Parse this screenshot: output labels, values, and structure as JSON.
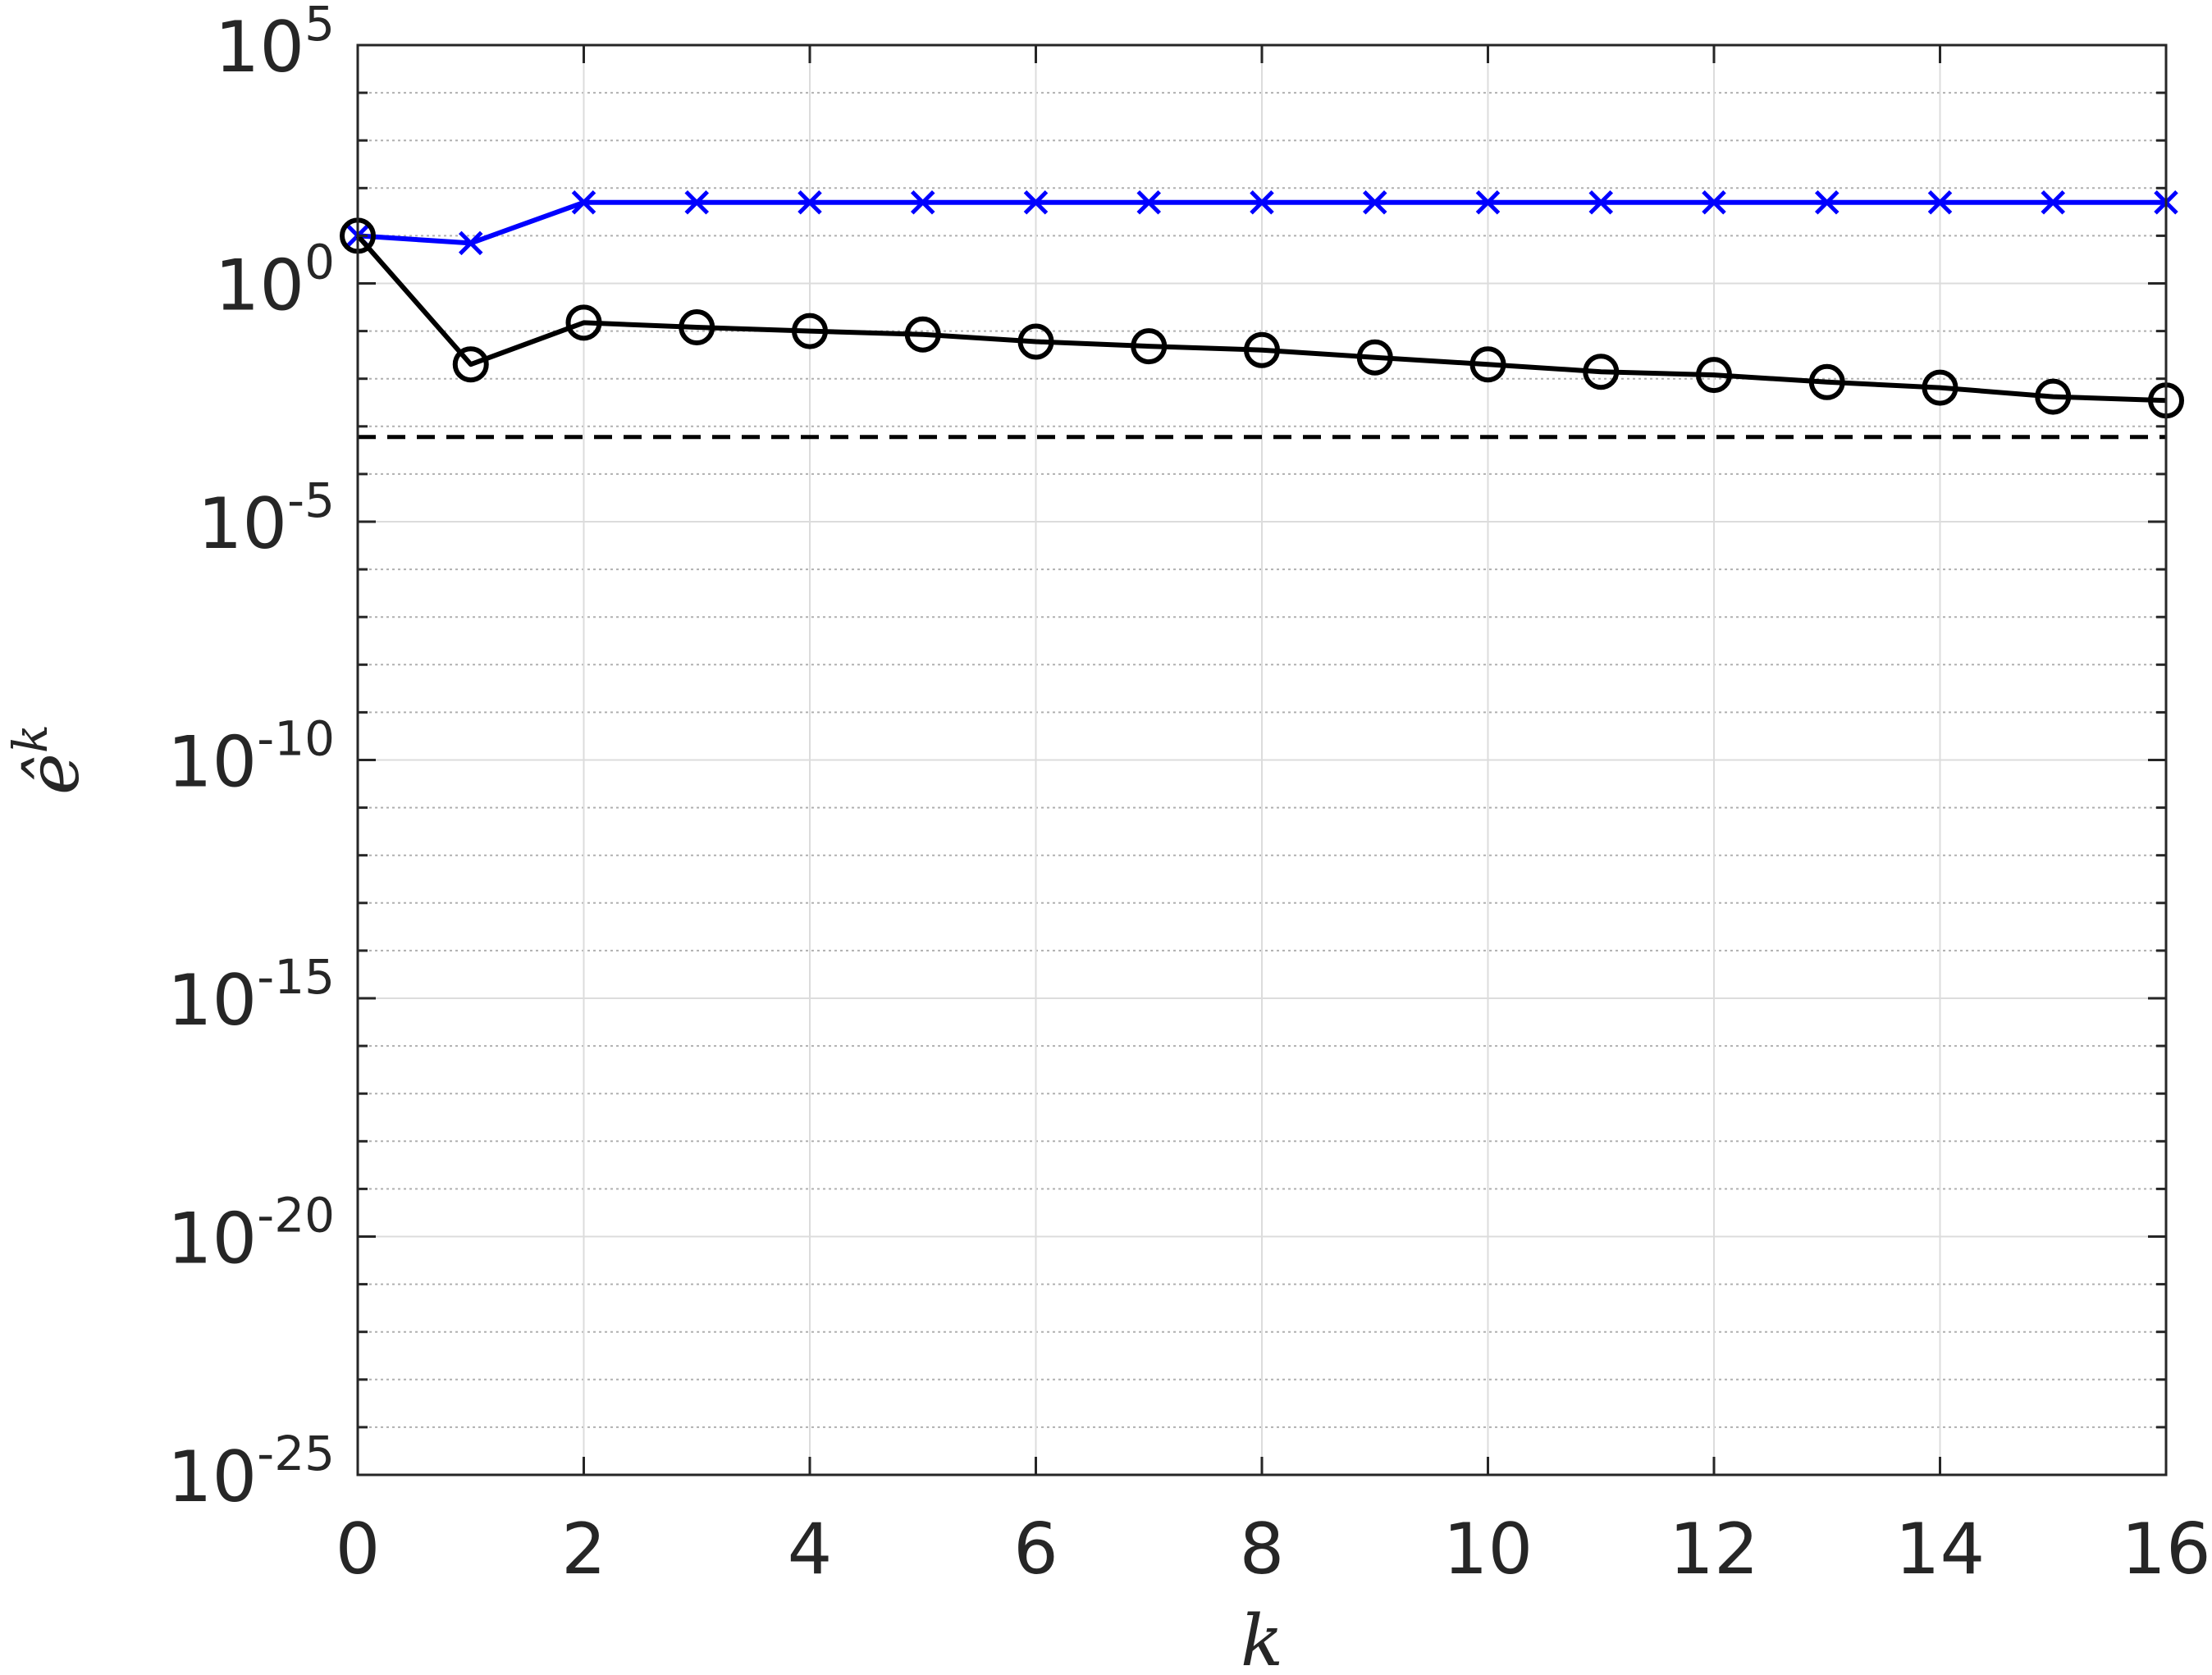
{
  "chart_data": {
    "type": "line",
    "title": "",
    "xlabel": "k",
    "ylabel": "ê",
    "ylabel_sup": "k",
    "xlim": [
      0,
      16
    ],
    "ylim": [
      1e-25,
      100000.0
    ],
    "yscale": "log",
    "grid": true,
    "x_ticks": [
      "0",
      "2",
      "4",
      "6",
      "8",
      "10",
      "12",
      "14",
      "16"
    ],
    "y_ticks": [
      {
        "base": "10",
        "exp": "5",
        "value": 5
      },
      {
        "base": "10",
        "exp": "0",
        "value": 0
      },
      {
        "base": "10",
        "exp": "-5",
        "value": -5
      },
      {
        "base": "10",
        "exp": "-10",
        "value": -10
      },
      {
        "base": "10",
        "exp": "-15",
        "value": -15
      },
      {
        "base": "10",
        "exp": "-20",
        "value": -20
      },
      {
        "base": "10",
        "exp": "-25",
        "value": -25
      }
    ],
    "series": [
      {
        "color": "#0000ff",
        "marker": "x",
        "x": [
          0,
          1,
          2,
          3,
          4,
          5,
          6,
          7,
          8,
          9,
          10,
          11,
          12,
          13,
          14,
          15,
          16
        ],
        "y": [
          10,
          7,
          50,
          50,
          50,
          50,
          50,
          50,
          50,
          50,
          50,
          50,
          50,
          50,
          50,
          50,
          50
        ]
      },
      {
        "color": "#000000",
        "marker": "circle",
        "x": [
          0,
          1,
          2,
          3,
          4,
          5,
          6,
          7,
          8,
          9,
          10,
          11,
          12,
          13,
          14,
          15,
          16
        ],
        "y": [
          10,
          0.02,
          0.15,
          0.12,
          0.1,
          0.085,
          0.06,
          0.048,
          0.04,
          0.028,
          0.02,
          0.014,
          0.012,
          0.0085,
          0.0065,
          0.0042,
          0.0035
        ]
      }
    ],
    "reference_line": {
      "y": 0.0006,
      "style": "dashed",
      "color": "#000000"
    }
  }
}
